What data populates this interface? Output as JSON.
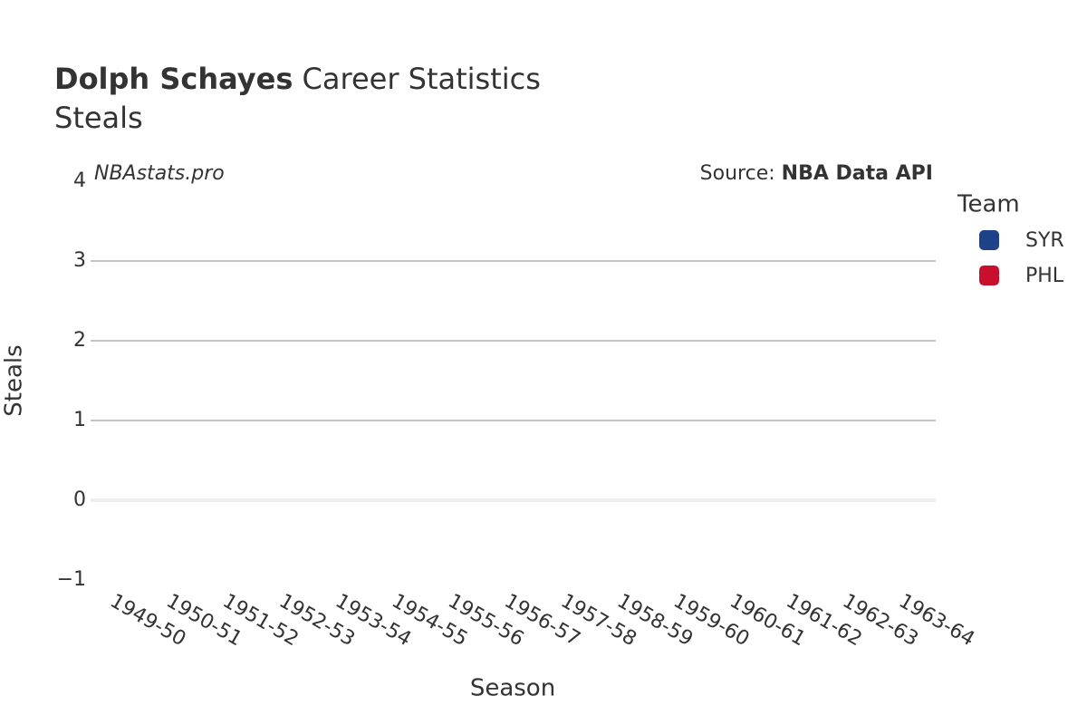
{
  "chart_data": {
    "type": "bar",
    "title": {
      "bold": "Dolph Schayes",
      "rest": "Career Statistics"
    },
    "subtitle": "Steals",
    "annotations": {
      "left": "NBAstats.pro",
      "source_prefix": "Source:",
      "source": "NBA Data API"
    },
    "x_label": "Season",
    "y_label": "Steals",
    "categories": [
      "1949-50",
      "1950-51",
      "1951-52",
      "1952-53",
      "1953-54",
      "1954-55",
      "1955-56",
      "1956-57",
      "1957-58",
      "1958-59",
      "1959-60",
      "1960-61",
      "1961-62",
      "1962-63",
      "1963-64"
    ],
    "series": [
      {
        "name": "SYR",
        "color": "#1d428a",
        "values": [
          null,
          null,
          null,
          null,
          null,
          null,
          null,
          null,
          null,
          null,
          null,
          null,
          null,
          null,
          null
        ]
      },
      {
        "name": "PHL",
        "color": "#c8102e",
        "values": [
          null,
          null,
          null,
          null,
          null,
          null,
          null,
          null,
          null,
          null,
          null,
          null,
          null,
          null,
          null
        ]
      }
    ],
    "legend_title": "Team",
    "ylim": [
      -1,
      4
    ],
    "yticks": [
      {
        "value": -1,
        "label": "−1"
      },
      0,
      1,
      2,
      3,
      4
    ],
    "grid": true
  }
}
